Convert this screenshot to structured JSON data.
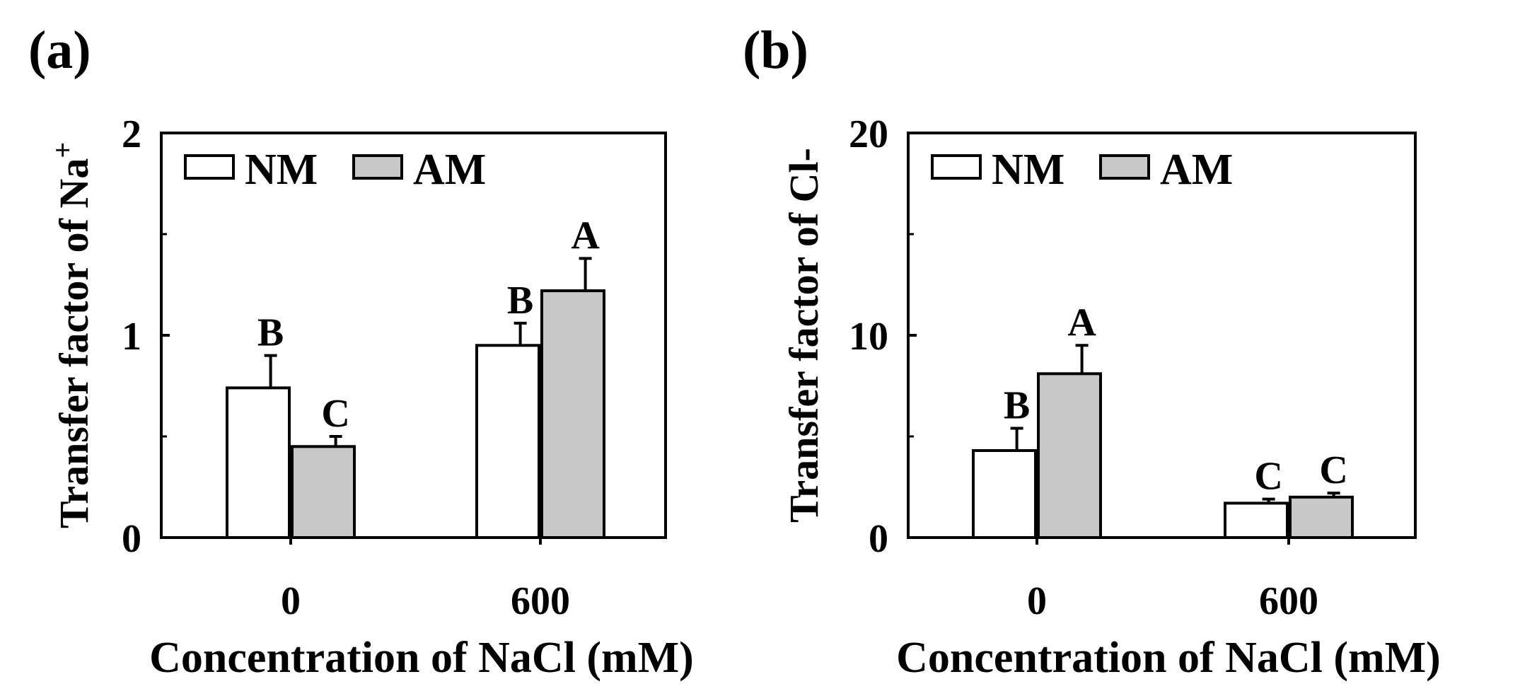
{
  "legend_labels": [
    "NM",
    "AM"
  ],
  "colors": {
    "NM": "#ffffff",
    "AM": "#c8c8c8",
    "axis": "#000000"
  },
  "chart_data": [
    {
      "type": "bar",
      "panel_label": "(a)",
      "categories": [
        "0",
        "600"
      ],
      "series": [
        {
          "name": "NM",
          "values": [
            0.74,
            0.95
          ],
          "errors": [
            0.16,
            0.11
          ],
          "letters": [
            "B",
            "B"
          ]
        },
        {
          "name": "AM",
          "values": [
            0.45,
            1.22
          ],
          "errors": [
            0.05,
            0.16
          ],
          "letters": [
            "C",
            "A"
          ]
        }
      ],
      "ylim": [
        0,
        2
      ],
      "yticks": [
        "0",
        "1",
        "2"
      ],
      "ylabel": "Transfer factor of Na",
      "ylabel_sup": "+",
      "xlabel": "Concentration of NaCl (mM)",
      "legend_position": "top-left"
    },
    {
      "type": "bar",
      "panel_label": "(b)",
      "categories": [
        "0",
        "600"
      ],
      "series": [
        {
          "name": "NM",
          "values": [
            4.3,
            1.7
          ],
          "errors": [
            1.1,
            0.2
          ],
          "letters": [
            "B",
            "C"
          ]
        },
        {
          "name": "AM",
          "values": [
            8.1,
            2.0
          ],
          "errors": [
            1.4,
            0.2
          ],
          "letters": [
            "A",
            "C"
          ]
        }
      ],
      "ylim": [
        0,
        20
      ],
      "yticks": [
        "0",
        "10",
        "20"
      ],
      "ylabel": "Transfer factor of Cl-",
      "ylabel_sup": "",
      "xlabel": "Concentration of NaCl (mM)",
      "legend_position": "top-left"
    }
  ]
}
